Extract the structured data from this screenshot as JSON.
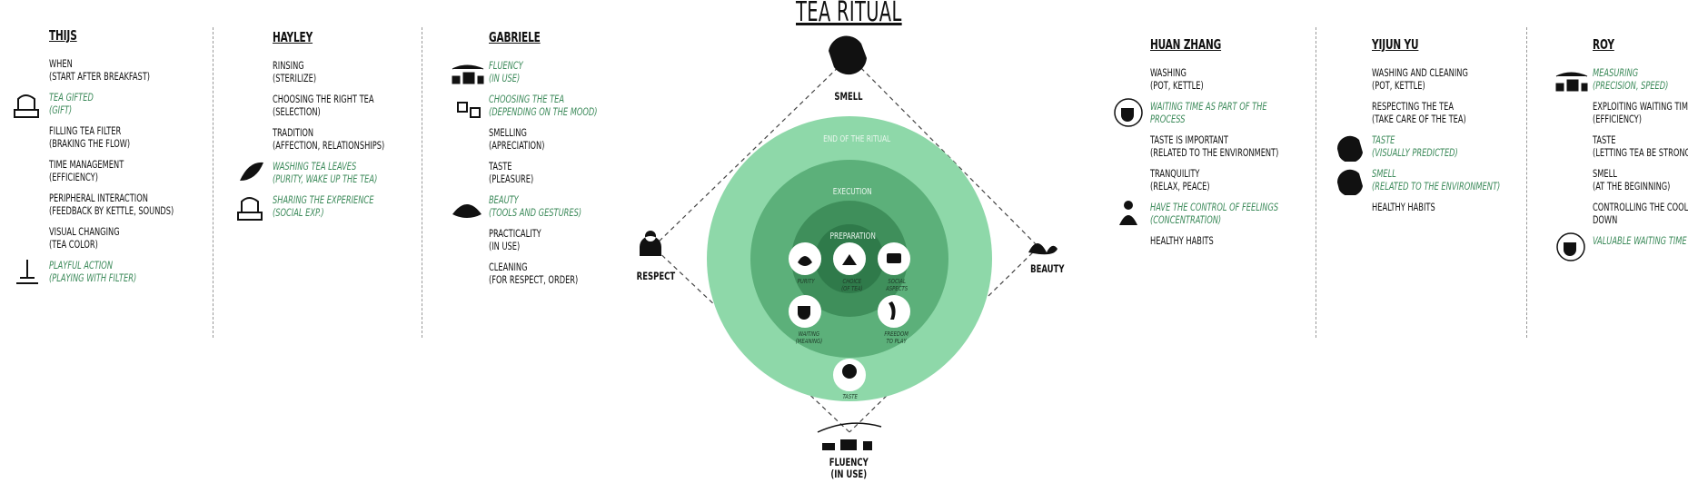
{
  "title": "TEA RITUAL",
  "diagram": {
    "corners": {
      "top": "SMELL",
      "left": "RESPECT",
      "right": "BEAUTY",
      "bottom_line1": "FLUENCY",
      "bottom_line2": "(IN USE)"
    },
    "rings": {
      "outer": "END OF THE RITUAL",
      "middle": "EXECUTION",
      "inner": "PREPARATION"
    },
    "nodes": {
      "purity": "PURITY",
      "choice_line1": "CHOICE",
      "choice_line2": "(OF TEA)",
      "social_line1": "SOCIAL",
      "social_line2": "ASPECTS",
      "waiting_line1": "WAITING",
      "waiting_line2": "(MEANING)",
      "freedom_line1": "FREEDOM",
      "freedom_line2": "TO PLAY",
      "taste": "TASTE"
    },
    "colors": {
      "outer": "#8ed8a9",
      "middle": "#5cb07a",
      "inner": "#3f8f5b",
      "core": "#2f7a4a",
      "accent_text": "#3c8a5a"
    }
  },
  "columns": [
    {
      "name": "THIJS",
      "entries": [
        {
          "l1": "WHEN",
          "l2": "(START AFTER BREAKFAST)",
          "green": false
        },
        {
          "l1": "TEA GIFTED",
          "l2": "(GIFT)",
          "green": true,
          "icon": "tea-gift-icon"
        },
        {
          "l1": "FILLING TEA FILTER",
          "l2": "(BRAKING THE FLOW)",
          "green": false
        },
        {
          "l1": "TIME MANAGEMENT",
          "l2": "(EFFICIENCY)",
          "green": false
        },
        {
          "l1": "PERIPHERAL INTERACTION",
          "l2": "(FEEDBACK BY KETTLE, SOUNDS)",
          "green": false
        },
        {
          "l1": "VISUAL CHANGING",
          "l2": "(TEA COLOR)",
          "green": false
        },
        {
          "l1": "PLAYFUL ACTION",
          "l2": "(PLAYING WITH FILTER)",
          "green": true,
          "icon": "playful-filter-icon"
        }
      ]
    },
    {
      "name": "HAYLEY",
      "entries": [
        {
          "l1": "RINSING",
          "l2": "(STERILIZE)",
          "green": false
        },
        {
          "l1": "CHOOSING THE RIGHT TEA",
          "l2": "(SELECTION)",
          "green": false
        },
        {
          "l1": "TRADITION",
          "l2": "(AFFECTION, RELATIONSHIPS)",
          "green": false
        },
        {
          "l1": "WASHING TEA LEAVES",
          "l2": "(PURITY, WAKE UP THE TEA)",
          "green": true,
          "icon": "tea-leaf-icon"
        },
        {
          "l1": "SHARING THE EXPERIENCE",
          "l2": "(SOCIAL EXP.)",
          "green": true,
          "icon": "tea-gift-icon"
        }
      ]
    },
    {
      "name": "GABRIELE",
      "entries": [
        {
          "l1": "FLUENCY",
          "l2": "(IN USE)",
          "green": true,
          "icon": "tea-set-icon"
        },
        {
          "l1": "CHOOSING THE TEA",
          "l2": "(DEPENDING ON THE MOOD)",
          "green": true,
          "icon": "tea-choice-icon"
        },
        {
          "l1": "SMELLING",
          "l2": "(APRECIATION)",
          "green": false
        },
        {
          "l1": "TASTE",
          "l2": "(PLEASURE)",
          "green": false
        },
        {
          "l1": "BEAUTY",
          "l2": "(TOOLS AND GESTURES)",
          "green": true,
          "icon": "lotus-icon"
        },
        {
          "l1": "PRACTICALITY",
          "l2": "(IN USE)",
          "green": false
        },
        {
          "l1": "CLEANING",
          "l2": "(FOR RESPECT, ORDER)",
          "green": false
        }
      ]
    },
    {
      "name": "HUAN ZHANG",
      "entries": [
        {
          "l1": "WASHING",
          "l2": "(POT, KETTLE)",
          "green": false
        },
        {
          "l1": "WAITING TIME AS PART OF THE",
          "l2": "PROCESS",
          "green": true,
          "icon": "waiting-cup-icon"
        },
        {
          "l1": "TASTE IS IMPORTANT",
          "l2": "(RELATED TO THE ENVIRONMENT)",
          "green": false
        },
        {
          "l1": "TRANQUILITY",
          "l2": "(RELAX, PEACE)",
          "green": false
        },
        {
          "l1": "HAVE THE CONTROL OF FEELINGS",
          "l2": "(CONCENTRATION)",
          "green": true,
          "icon": "meditation-icon"
        },
        {
          "l1": "HEALTHY HABITS",
          "l2": "",
          "green": false
        }
      ]
    },
    {
      "name": "YIJUN YU",
      "entries": [
        {
          "l1": "WASHING AND CLEANING",
          "l2": "(POT, KETTLE)",
          "green": false
        },
        {
          "l1": "RESPECTING THE TEA",
          "l2": "(TAKE CARE OF THE TEA)",
          "green": false
        },
        {
          "l1": "TASTE",
          "l2": "(VISUALLY PREDICTED)",
          "green": true,
          "icon": "teabag-icon"
        },
        {
          "l1": "SMELL",
          "l2": "(RELATED TO THE ENVIRONMENT)",
          "green": true,
          "icon": "teabag-icon"
        },
        {
          "l1": "HEALTHY HABITS",
          "l2": "",
          "green": false
        }
      ]
    },
    {
      "name": "ROY",
      "entries": [
        {
          "l1": "MEASURING",
          "l2": "(PRECISION, SPEED)",
          "green": true,
          "icon": "tea-set-icon"
        },
        {
          "l1": "EXPLOITING WAITING TIME",
          "l2": "(EFFICIENCY)",
          "green": false
        },
        {
          "l1": "TASTE",
          "l2": "(LETTING TEA BE STRONG)",
          "green": false
        },
        {
          "l1": "SMELL",
          "l2": "(AT THE BEGINNING)",
          "green": false
        },
        {
          "l1": "CONTROLLING THE COOLING",
          "l2": "DOWN",
          "green": false
        },
        {
          "l1": "VALUABLE WAITING TIME",
          "l2": "",
          "green": true,
          "icon": "waiting-cup-icon"
        }
      ]
    }
  ]
}
